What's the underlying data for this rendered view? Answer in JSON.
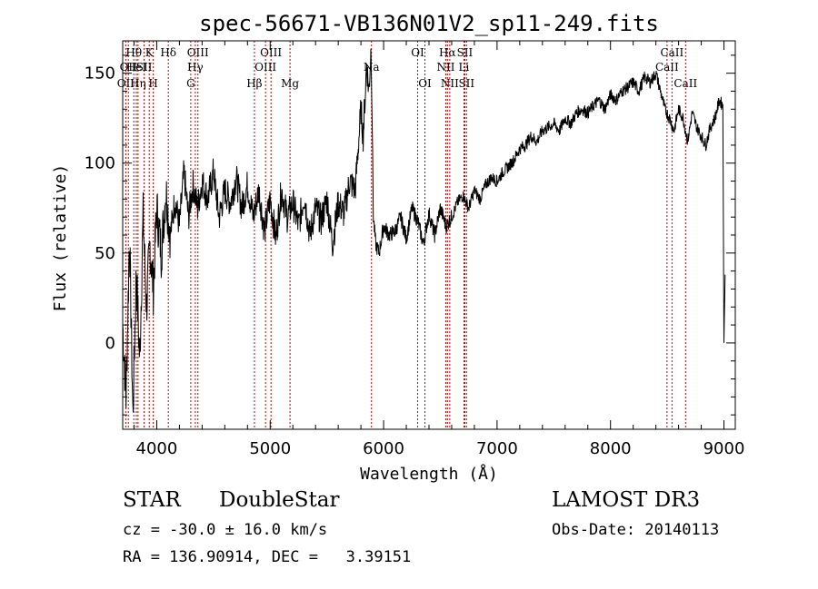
{
  "chart_data": {
    "type": "line",
    "title": "spec-56671-VB136N01V2_sp11-249.fits",
    "xlabel": "Wavelength (Å)",
    "ylabel": "Flux (relative)",
    "xlim": [
      3700,
      9100
    ],
    "ylim": [
      -48,
      168
    ],
    "xticks": [
      4000,
      5000,
      6000,
      7000,
      8000,
      9000
    ],
    "yticks": [
      0,
      50,
      100,
      150
    ],
    "grid": false,
    "series": [
      {
        "name": "flux",
        "x": [
          3700,
          3730,
          3760,
          3790,
          3820,
          3850,
          3880,
          3910,
          3940,
          3970,
          4000,
          4040,
          4080,
          4120,
          4160,
          4200,
          4240,
          4280,
          4320,
          4360,
          4400,
          4450,
          4500,
          4550,
          4600,
          4650,
          4700,
          4750,
          4800,
          4850,
          4900,
          4950,
          5000,
          5050,
          5100,
          5150,
          5200,
          5250,
          5300,
          5350,
          5400,
          5450,
          5500,
          5550,
          5600,
          5650,
          5700,
          5750,
          5800,
          5820,
          5850,
          5870,
          5890,
          5900,
          5910,
          5930,
          5960,
          6000,
          6050,
          6100,
          6150,
          6200,
          6250,
          6300,
          6350,
          6400,
          6450,
          6500,
          6550,
          6600,
          6650,
          6700,
          6750,
          6800,
          6850,
          6900,
          6950,
          7000,
          7050,
          7100,
          7150,
          7200,
          7250,
          7300,
          7350,
          7400,
          7450,
          7500,
          7550,
          7600,
          7650,
          7700,
          7750,
          7800,
          7850,
          7900,
          7950,
          8000,
          8050,
          8100,
          8150,
          8200,
          8250,
          8300,
          8350,
          8400,
          8440,
          8480,
          8520,
          8560,
          8600,
          8640,
          8680,
          8720,
          8760,
          8800,
          8840,
          8880,
          8920,
          8960,
          8990,
          9000,
          9010
        ],
        "y": [
          10,
          -30,
          60,
          -40,
          40,
          -10,
          70,
          20,
          55,
          30,
          75,
          50,
          85,
          60,
          80,
          65,
          95,
          70,
          88,
          75,
          90,
          80,
          95,
          70,
          85,
          78,
          92,
          75,
          88,
          70,
          85,
          62,
          80,
          58,
          85,
          70,
          78,
          65,
          82,
          60,
          75,
          68,
          80,
          55,
          78,
          72,
          90,
          85,
          130,
          115,
          155,
          140,
          165,
          120,
          70,
          55,
          50,
          65,
          60,
          62,
          70,
          58,
          75,
          68,
          55,
          72,
          60,
          75,
          65,
          70,
          78,
          82,
          75,
          85,
          80,
          88,
          92,
          90,
          95,
          98,
          102,
          108,
          110,
          115,
          112,
          118,
          120,
          122,
          118,
          125,
          122,
          128,
          130,
          128,
          132,
          135,
          130,
          138,
          135,
          140,
          142,
          145,
          140,
          148,
          145,
          150,
          140,
          130,
          125,
          118,
          130,
          125,
          112,
          128,
          120,
          115,
          110,
          120,
          125,
          135,
          132,
          0,
          38
        ]
      }
    ],
    "line_labels": [
      {
        "wavelength": 3727,
        "label": "OII",
        "tier": 3
      },
      {
        "wavelength": 3750,
        "label": "OII",
        "tier": 2
      },
      {
        "wavelength": 3798,
        "label": "Hθ",
        "tier": 1
      },
      {
        "wavelength": 3820,
        "label": "HeI",
        "tier": 2
      },
      {
        "wavelength": 3835,
        "label": "Hη",
        "tier": 3
      },
      {
        "wavelength": 3889,
        "label": "SII",
        "tier": 2
      },
      {
        "wavelength": 3934,
        "label": "K",
        "tier": 1
      },
      {
        "wavelength": 3969,
        "label": "H",
        "tier": 3
      },
      {
        "wavelength": 4102,
        "label": "Hδ",
        "tier": 1
      },
      {
        "wavelength": 4300,
        "label": "G",
        "tier": 3
      },
      {
        "wavelength": 4340,
        "label": "Hγ",
        "tier": 2
      },
      {
        "wavelength": 4363,
        "label": "OIII",
        "tier": 1
      },
      {
        "wavelength": 4861,
        "label": "Hβ",
        "tier": 3
      },
      {
        "wavelength": 4959,
        "label": "OIII",
        "tier": 2
      },
      {
        "wavelength": 5007,
        "label": "OIII",
        "tier": 1
      },
      {
        "wavelength": 5175,
        "label": "Mg",
        "tier": 3
      },
      {
        "wavelength": 5893,
        "label": "Na",
        "tier": 2
      },
      {
        "wavelength": 6300,
        "label": "OI",
        "tier": 1
      },
      {
        "wavelength": 6364,
        "label": "OI",
        "tier": 3
      },
      {
        "wavelength": 6548,
        "label": "NII",
        "tier": 2
      },
      {
        "wavelength": 6563,
        "label": "Hα",
        "tier": 1
      },
      {
        "wavelength": 6583,
        "label": "NII",
        "tier": 3
      },
      {
        "wavelength": 6708,
        "label": "Li",
        "tier": 2
      },
      {
        "wavelength": 6716,
        "label": "SII",
        "tier": 1
      },
      {
        "wavelength": 6731,
        "label": "SII",
        "tier": 3
      },
      {
        "wavelength": 8498,
        "label": "CaII",
        "tier": 2
      },
      {
        "wavelength": 8542,
        "label": "CaII",
        "tier": 1
      },
      {
        "wavelength": 8662,
        "label": "CaII",
        "tier": 3
      }
    ]
  },
  "info": {
    "class": "STAR",
    "subclass": "DoubleStar",
    "survey": "LAMOST DR3",
    "cz": "cz = -30.0 ± 16.0 km/s",
    "obs_date": "Obs-Date: 20140113",
    "radec": "RA = 136.90914, DEC =   3.39151"
  },
  "colors": {
    "line_marker": "#c80000",
    "spectrum": "#000000",
    "axis": "#000000"
  }
}
